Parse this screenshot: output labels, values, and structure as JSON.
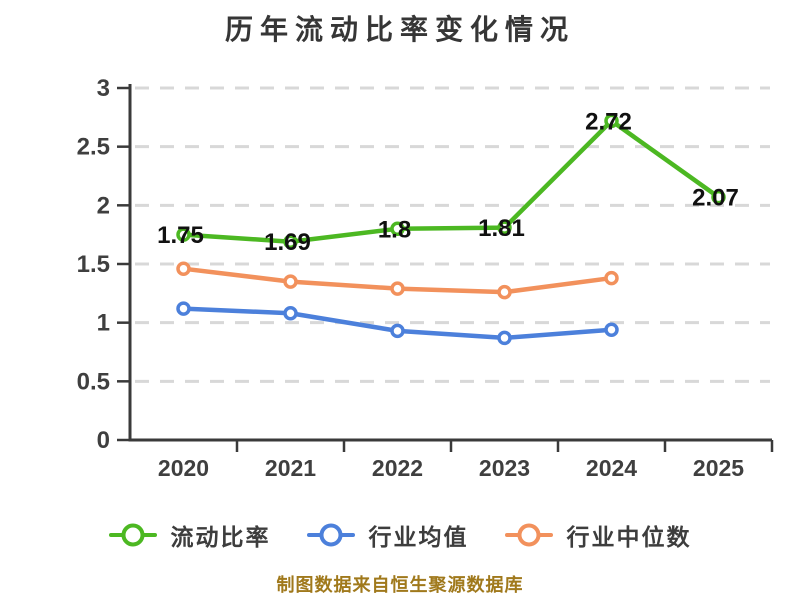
{
  "title": "历年流动比率变化情况",
  "footer": "制图数据来自恒生聚源数据库",
  "colors": {
    "current_ratio": "#4CB822",
    "industry_average": "#4C80DB",
    "industry_median": "#F2915C",
    "axis": "#3A3A3A",
    "grid": "#D8D8D8",
    "tick_text": "#3F3F3F",
    "data_label": "#111111",
    "title_text": "#363636",
    "footer_text": "#A0791C",
    "background": "#FFFFFF"
  },
  "legend": {
    "items": [
      {
        "id": "current-ratio",
        "label": "流动比率",
        "color": "#4CB822"
      },
      {
        "id": "industry-average",
        "label": "行业均值",
        "color": "#4C80DB"
      },
      {
        "id": "industry-median",
        "label": "行业中位数",
        "color": "#F2915C"
      }
    ]
  },
  "chart_data": {
    "type": "line",
    "title": "历年流动比率变化情况",
    "categories": [
      "2020",
      "2021",
      "2022",
      "2023",
      "2024",
      "2025"
    ],
    "y_ticks": [
      3,
      2.5,
      2,
      1.5,
      1,
      0.5,
      0
    ],
    "ylim": [
      0,
      3
    ],
    "grid": "horizontal-dashed",
    "legend_position": "bottom",
    "series": [
      {
        "id": "current-ratio",
        "name": "流动比率",
        "color": "#4CB822",
        "values": [
          1.75,
          1.69,
          1.8,
          1.81,
          2.72,
          2.07
        ],
        "labels": [
          "1.75",
          "1.69",
          "1.8",
          "1.81",
          "2.72",
          "2.07"
        ],
        "show_labels": true
      },
      {
        "id": "industry-average",
        "name": "行业均值",
        "color": "#4C80DB",
        "values": [
          1.12,
          1.08,
          0.93,
          0.87,
          0.94,
          null
        ],
        "show_labels": false
      },
      {
        "id": "industry-median",
        "name": "行业中位数",
        "color": "#F2915C",
        "values": [
          1.46,
          1.35,
          1.29,
          1.26,
          1.38,
          null
        ],
        "show_labels": false
      }
    ]
  }
}
